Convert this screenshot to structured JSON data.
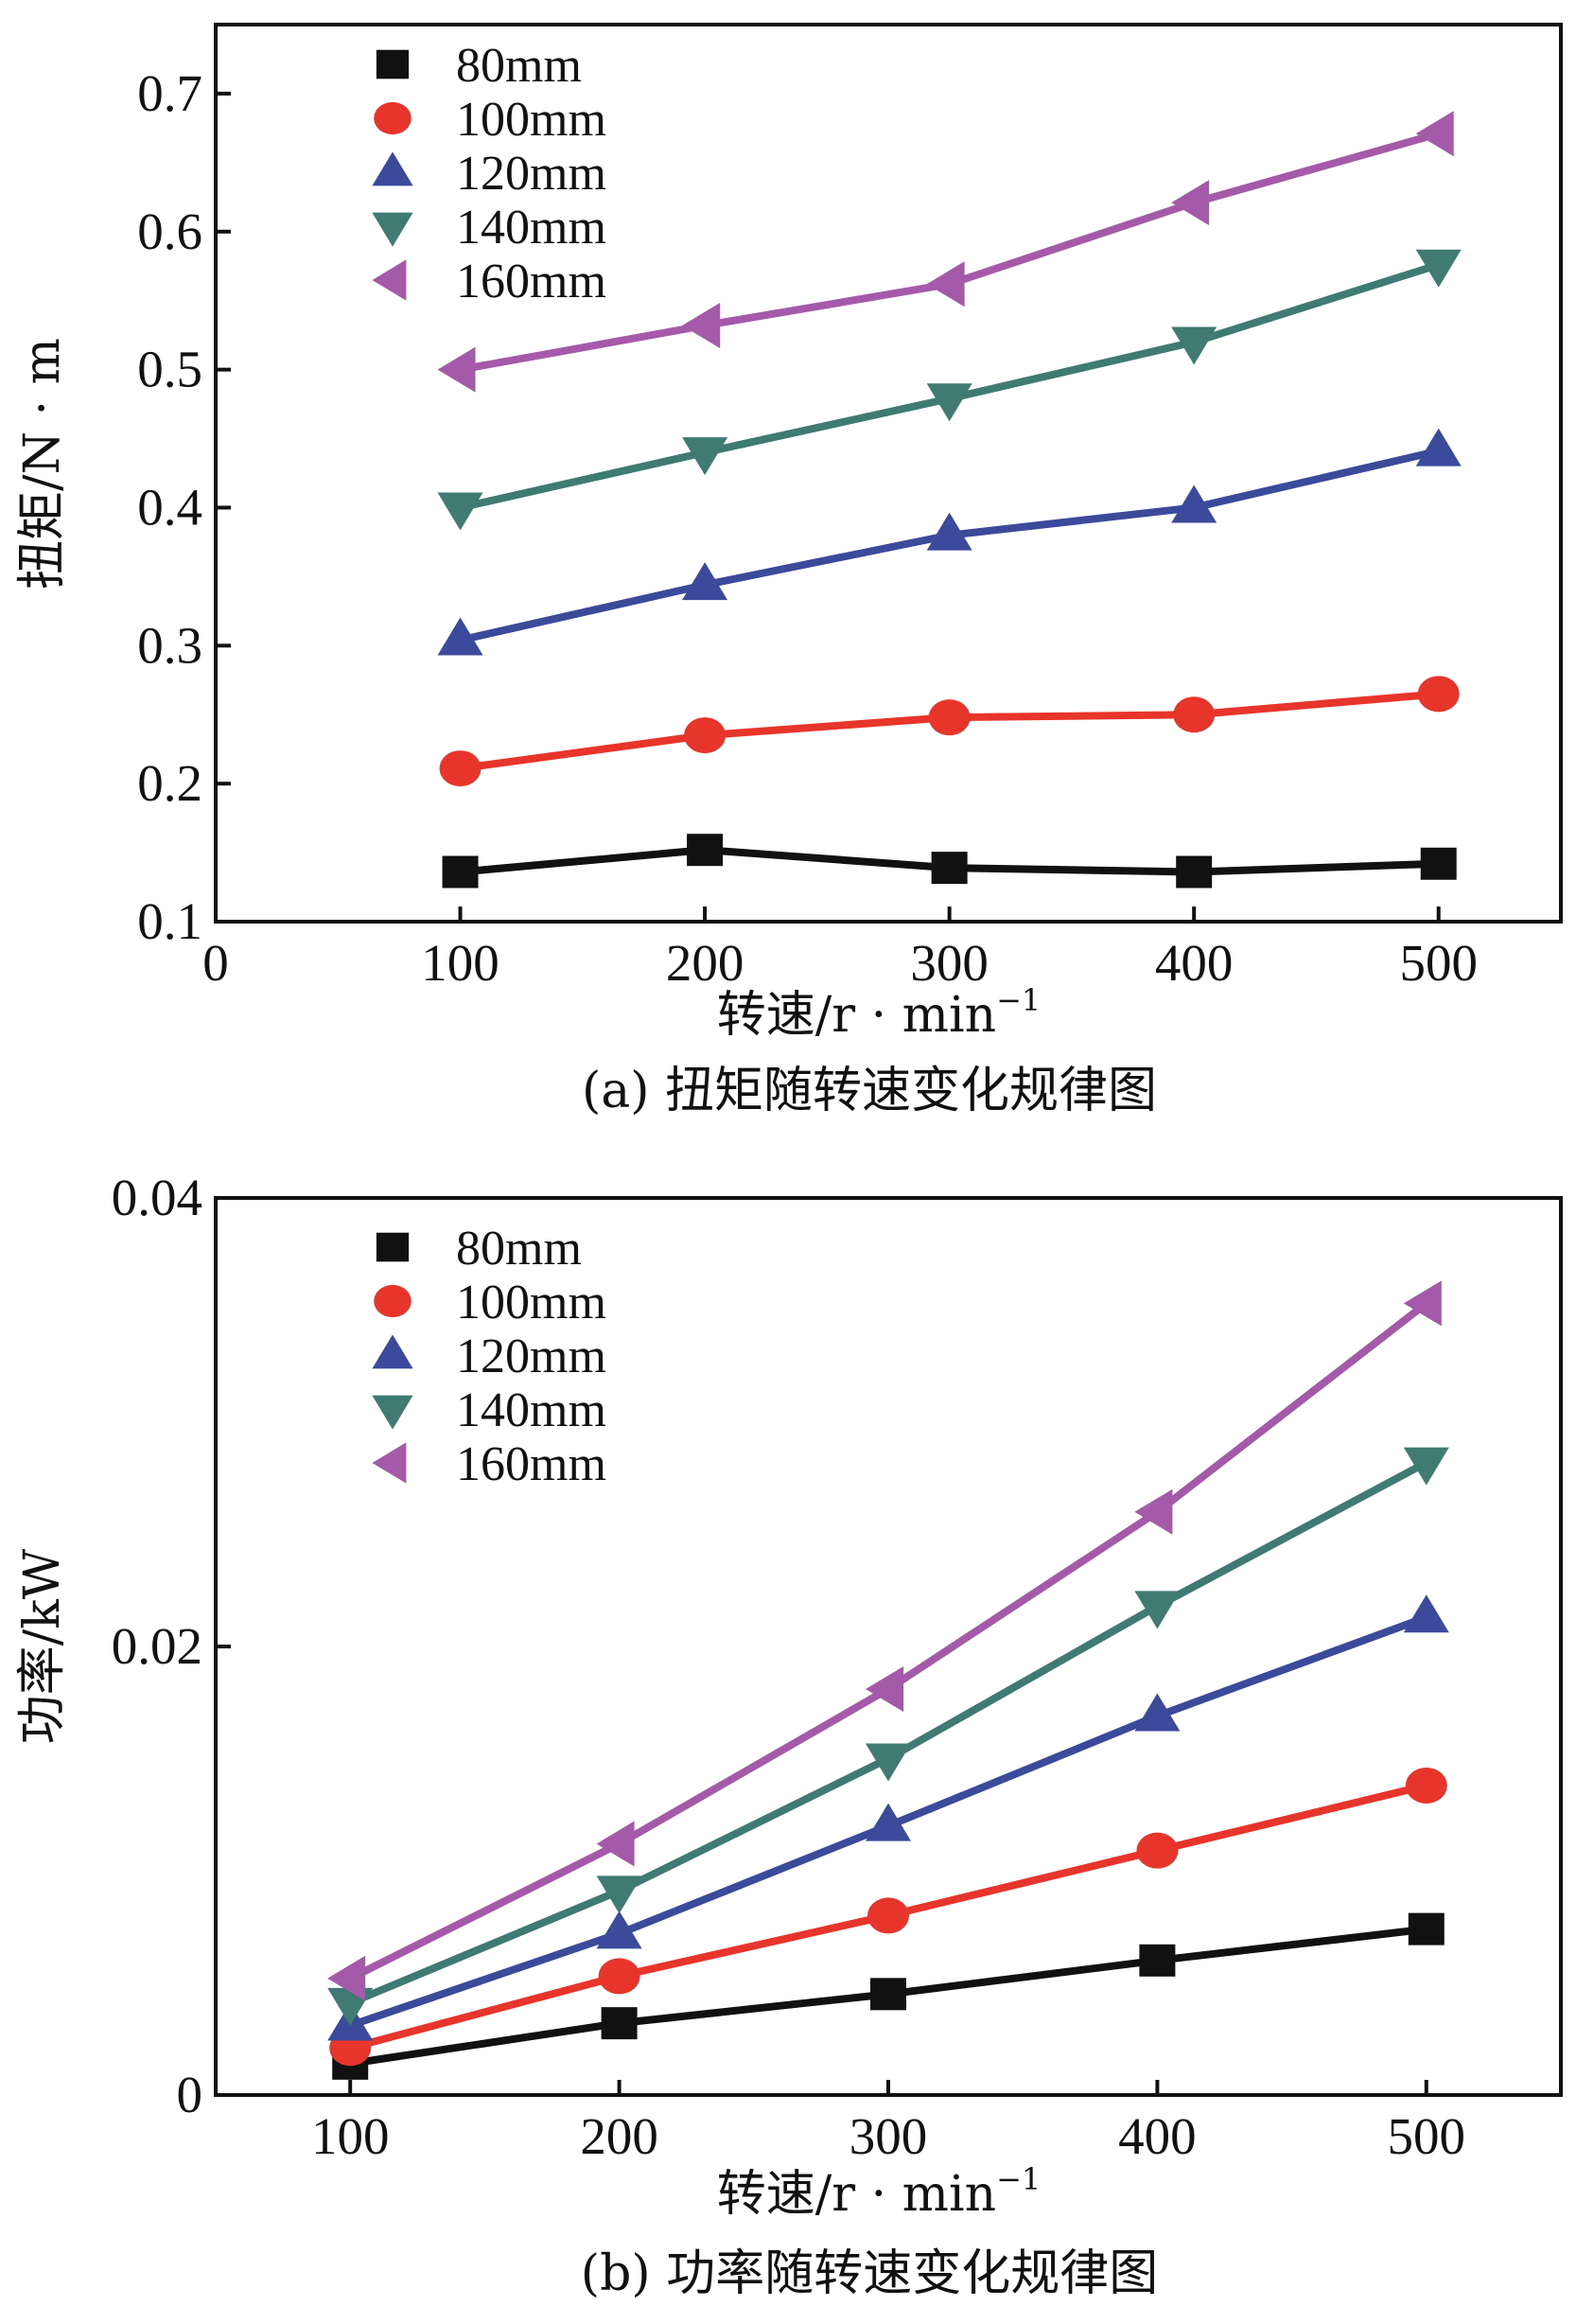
{
  "chart_data": [
    {
      "type": "line",
      "title": "",
      "caption": "(a) 扭矩随转速变化规律图",
      "xlabel": "转速/r · min",
      "xlabel_sup": "−1",
      "ylabel": "扭矩/N · m",
      "x": [
        100,
        200,
        300,
        400,
        500
      ],
      "xlim": [
        0,
        550
      ],
      "ylim": [
        0.1,
        0.75
      ],
      "xticks": [
        0,
        100,
        200,
        300,
        400,
        500
      ],
      "xtick_labels": [
        "0",
        "100",
        "200",
        "300",
        "400",
        "500"
      ],
      "yticks": [
        0.1,
        0.2,
        0.3,
        0.4,
        0.5,
        0.6,
        0.7
      ],
      "ytick_labels": [
        "0.1",
        "0.2",
        "0.3",
        "0.4",
        "0.5",
        "0.6",
        "0.7"
      ],
      "grid": false,
      "legend_position": "top-left",
      "series": [
        {
          "name": "80mm",
          "marker": "square",
          "color": "#111111",
          "values": [
            0.136,
            0.152,
            0.139,
            0.136,
            0.142
          ]
        },
        {
          "name": "100mm",
          "marker": "circle",
          "color": "#e8352b",
          "values": [
            0.211,
            0.235,
            0.248,
            0.25,
            0.265
          ]
        },
        {
          "name": "120mm",
          "marker": "triangle-up",
          "color": "#3b4a9b",
          "values": [
            0.304,
            0.344,
            0.38,
            0.4,
            0.441
          ]
        },
        {
          "name": "140mm",
          "marker": "triangle-down",
          "color": "#3f7a73",
          "values": [
            0.4,
            0.44,
            0.479,
            0.52,
            0.576
          ]
        },
        {
          "name": "160mm",
          "marker": "triangle-left",
          "color": "#a45aa8",
          "values": [
            0.5,
            0.532,
            0.562,
            0.621,
            0.671
          ]
        }
      ]
    },
    {
      "type": "line",
      "title": "",
      "caption": "(b) 功率随转速变化规律图",
      "xlabel": "转速/r · min",
      "xlabel_sup": "−1",
      "ylabel": "功率/kW",
      "x": [
        100,
        200,
        300,
        400,
        500
      ],
      "xlim": [
        50,
        550
      ],
      "ylim": [
        0,
        0.04
      ],
      "xticks": [
        100,
        200,
        300,
        400,
        500
      ],
      "xtick_labels": [
        "100",
        "200",
        "300",
        "400",
        "500"
      ],
      "yticks": [
        0,
        0.02,
        0.04
      ],
      "ytick_labels": [
        "0",
        "0.02",
        "0.04"
      ],
      "grid": false,
      "legend_position": "top-left",
      "series": [
        {
          "name": "80mm",
          "marker": "square",
          "color": "#111111",
          "values": [
            0.0014,
            0.0032,
            0.0045,
            0.006,
            0.0074
          ]
        },
        {
          "name": "100mm",
          "marker": "circle",
          "color": "#e8352b",
          "values": [
            0.0021,
            0.0053,
            0.008,
            0.0109,
            0.0138
          ]
        },
        {
          "name": "120mm",
          "marker": "triangle-up",
          "color": "#3b4a9b",
          "values": [
            0.0031,
            0.0072,
            0.012,
            0.0169,
            0.0213
          ]
        },
        {
          "name": "140mm",
          "marker": "triangle-down",
          "color": "#3f7a73",
          "values": [
            0.0041,
            0.0091,
            0.015,
            0.0218,
            0.0282
          ]
        },
        {
          "name": "160mm",
          "marker": "triangle-left",
          "color": "#a45aa8",
          "values": [
            0.0052,
            0.0112,
            0.0181,
            0.026,
            0.0353
          ]
        }
      ]
    }
  ]
}
